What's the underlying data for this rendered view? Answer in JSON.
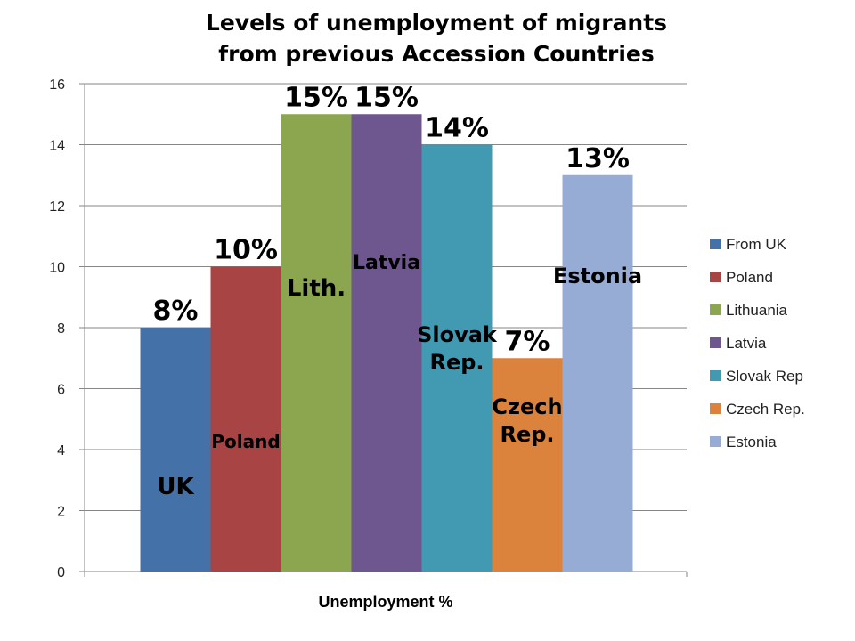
{
  "chart_data": {
    "type": "bar",
    "title_lines": [
      "Levels of unemployment of migrants",
      "from previous Accession Countries"
    ],
    "xlabel": "Unemployment %",
    "ylabel": "",
    "ylim": [
      0,
      16
    ],
    "yticks": [
      0,
      2,
      4,
      6,
      8,
      10,
      12,
      14,
      16
    ],
    "grid": true,
    "legend_position": "right",
    "series": [
      {
        "name": "From UK",
        "value": 8,
        "color": "#4472A8",
        "data_label": "8%",
        "bar_label": [
          "UK"
        ]
      },
      {
        "name": "Poland",
        "value": 10,
        "color": "#A84444",
        "data_label": "10%",
        "bar_label": [
          "Poland"
        ]
      },
      {
        "name": "Lithuania",
        "value": 15,
        "color": "#8BA64F",
        "data_label": "15%",
        "bar_label": [
          "Lith."
        ]
      },
      {
        "name": "Latvia",
        "value": 15,
        "color": "#6E568E",
        "data_label": "15%",
        "bar_label": [
          "Latvia"
        ]
      },
      {
        "name": "Slovak Rep",
        "value": 14,
        "color": "#419AB2",
        "data_label": "14%",
        "bar_label": [
          "Slovak",
          "Rep."
        ]
      },
      {
        "name": "Czech Rep.",
        "value": 7,
        "color": "#DB823D",
        "data_label": "7%",
        "bar_label": [
          "Czech",
          "Rep."
        ]
      },
      {
        "name": "Estonia",
        "value": 13,
        "color": "#96ACD4",
        "data_label": "13%",
        "bar_label": [
          "Estonia"
        ]
      }
    ]
  }
}
